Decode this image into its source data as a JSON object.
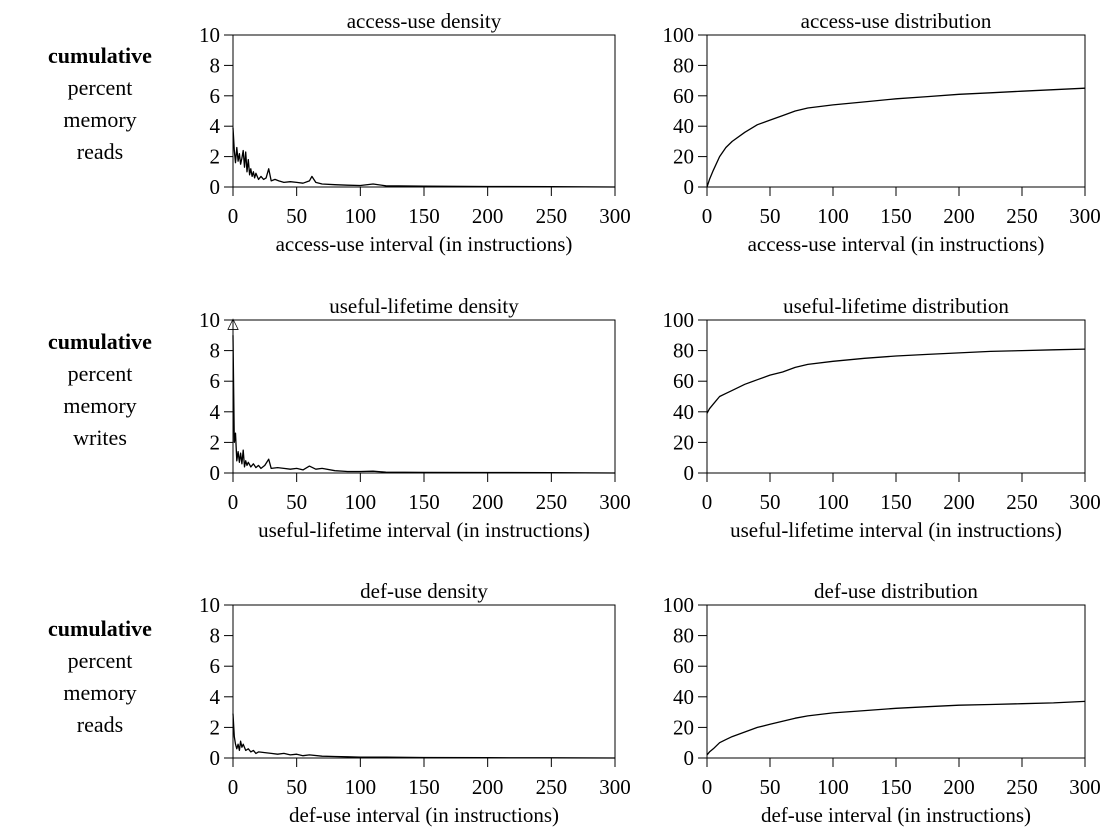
{
  "row_labels": [
    {
      "first": "cumulative",
      "lines": [
        "percent",
        "memory",
        "reads"
      ]
    },
    {
      "first": "cumulative",
      "lines": [
        "percent",
        "memory",
        "writes"
      ]
    },
    {
      "first": "cumulative",
      "lines": [
        "percent",
        "memory",
        "reads"
      ]
    }
  ],
  "chart_data": [
    {
      "type": "line",
      "title": "access-use density",
      "xlabel": "access-use interval (in instructions)",
      "ylabel": "",
      "xlim": [
        0,
        300
      ],
      "ylim": [
        0,
        10
      ],
      "xticks": [
        "0",
        "50",
        "100",
        "150",
        "200",
        "250",
        "300"
      ],
      "yticks": [
        "0",
        "2",
        "4",
        "6",
        "8",
        "10"
      ],
      "x": [
        0,
        1,
        2,
        3,
        4,
        5,
        6,
        7,
        8,
        9,
        10,
        11,
        12,
        13,
        14,
        15,
        16,
        17,
        18,
        20,
        22,
        24,
        26,
        28,
        30,
        33,
        36,
        40,
        45,
        50,
        55,
        60,
        62,
        65,
        70,
        80,
        90,
        100,
        110,
        120,
        150,
        200,
        250,
        300
      ],
      "series": [
        {
          "values": [
            3.9,
            2.4,
            1.6,
            2.6,
            1.7,
            2.2,
            1.5,
            1.9,
            2.4,
            1.3,
            2.3,
            1.0,
            1.8,
            0.8,
            1.2,
            0.7,
            1.0,
            0.6,
            0.9,
            0.5,
            0.7,
            0.5,
            0.6,
            1.2,
            0.4,
            0.5,
            0.4,
            0.3,
            0.35,
            0.3,
            0.25,
            0.4,
            0.7,
            0.3,
            0.2,
            0.15,
            0.12,
            0.1,
            0.2,
            0.08,
            0.05,
            0.03,
            0.02,
            0.0
          ]
        }
      ]
    },
    {
      "type": "line",
      "title": "access-use distribution",
      "xlabel": "access-use interval (in instructions)",
      "ylabel": "",
      "xlim": [
        0,
        300
      ],
      "ylim": [
        0,
        100
      ],
      "xticks": [
        "0",
        "50",
        "100",
        "150",
        "200",
        "250",
        "300"
      ],
      "yticks": [
        "0",
        "20",
        "40",
        "60",
        "80",
        "100"
      ],
      "x": [
        0,
        2,
        5,
        10,
        15,
        20,
        30,
        40,
        50,
        60,
        70,
        80,
        100,
        125,
        150,
        175,
        200,
        225,
        250,
        275,
        300
      ],
      "series": [
        {
          "values": [
            0,
            5,
            11,
            20,
            26,
            30,
            36,
            41,
            44,
            47,
            50,
            52,
            54,
            56,
            58,
            59.5,
            61,
            62,
            63,
            64,
            65
          ]
        }
      ]
    },
    {
      "type": "line",
      "title": "useful-lifetime density",
      "xlabel": "useful-lifetime interval (in instructions)",
      "ylabel": "",
      "xlim": [
        0,
        300
      ],
      "ylim": [
        0,
        10
      ],
      "xticks": [
        "0",
        "50",
        "100",
        "150",
        "200",
        "250",
        "300"
      ],
      "yticks": [
        "0",
        "2",
        "4",
        "6",
        "8",
        "10"
      ],
      "x": [
        0,
        1,
        2,
        3,
        4,
        5,
        6,
        7,
        8,
        9,
        10,
        11,
        12,
        14,
        16,
        18,
        20,
        22,
        25,
        28,
        30,
        35,
        40,
        45,
        50,
        55,
        60,
        65,
        70,
        80,
        90,
        100,
        110,
        120,
        150,
        200,
        250,
        300
      ],
      "series": [
        {
          "values": [
            9.0,
            2.0,
            2.6,
            0.8,
            1.4,
            0.7,
            1.3,
            0.6,
            1.5,
            0.4,
            0.8,
            0.5,
            0.7,
            0.4,
            0.6,
            0.35,
            0.5,
            0.3,
            0.5,
            0.9,
            0.3,
            0.35,
            0.3,
            0.25,
            0.3,
            0.2,
            0.45,
            0.25,
            0.3,
            0.15,
            0.1,
            0.1,
            0.12,
            0.05,
            0.04,
            0.03,
            0.02,
            0.0
          ]
        }
      ],
      "annotations": [
        {
          "text": "△",
          "x": 0,
          "y": 10
        }
      ]
    },
    {
      "type": "line",
      "title": "useful-lifetime distribution",
      "xlabel": "useful-lifetime interval (in instructions)",
      "ylabel": "",
      "xlim": [
        0,
        300
      ],
      "ylim": [
        0,
        100
      ],
      "xticks": [
        "0",
        "50",
        "100",
        "150",
        "200",
        "250",
        "300"
      ],
      "yticks": [
        "0",
        "20",
        "40",
        "60",
        "80",
        "100"
      ],
      "x": [
        0,
        2,
        5,
        10,
        15,
        20,
        30,
        40,
        50,
        60,
        70,
        80,
        100,
        125,
        150,
        175,
        200,
        225,
        250,
        275,
        300
      ],
      "series": [
        {
          "values": [
            39,
            42,
            45,
            50,
            52,
            54,
            58,
            61,
            64,
            66,
            69,
            71,
            73,
            75,
            76.5,
            77.5,
            78.5,
            79.5,
            80,
            80.5,
            81
          ]
        }
      ]
    },
    {
      "type": "line",
      "title": "def-use density",
      "xlabel": "def-use interval (in instructions)",
      "ylabel": "",
      "xlim": [
        0,
        300
      ],
      "ylim": [
        0,
        10
      ],
      "xticks": [
        "0",
        "50",
        "100",
        "150",
        "200",
        "250",
        "300"
      ],
      "yticks": [
        "0",
        "2",
        "4",
        "6",
        "8",
        "10"
      ],
      "x": [
        0,
        1,
        2,
        3,
        4,
        5,
        6,
        7,
        8,
        10,
        12,
        14,
        16,
        18,
        20,
        25,
        30,
        35,
        40,
        45,
        50,
        55,
        60,
        70,
        80,
        90,
        100,
        120,
        150,
        200,
        250,
        300
      ],
      "series": [
        {
          "values": [
            2.9,
            1.4,
            0.9,
            0.6,
            0.9,
            0.5,
            1.1,
            0.7,
            0.9,
            0.5,
            0.6,
            0.4,
            0.5,
            0.3,
            0.4,
            0.35,
            0.3,
            0.25,
            0.3,
            0.2,
            0.25,
            0.15,
            0.2,
            0.12,
            0.1,
            0.08,
            0.06,
            0.05,
            0.03,
            0.02,
            0.01,
            0.0
          ]
        }
      ]
    },
    {
      "type": "line",
      "title": "def-use distribution",
      "xlabel": "def-use interval (in instructions)",
      "ylabel": "",
      "xlim": [
        0,
        300
      ],
      "ylim": [
        0,
        100
      ],
      "xticks": [
        "0",
        "50",
        "100",
        "150",
        "200",
        "250",
        "300"
      ],
      "yticks": [
        "0",
        "20",
        "40",
        "60",
        "80",
        "100"
      ],
      "x": [
        0,
        2,
        5,
        10,
        15,
        20,
        30,
        40,
        50,
        60,
        70,
        80,
        100,
        125,
        150,
        175,
        200,
        225,
        250,
        275,
        300
      ],
      "series": [
        {
          "values": [
            2,
            4,
            6,
            10,
            12,
            14,
            17,
            20,
            22,
            24,
            26,
            27.5,
            29.5,
            31,
            32.5,
            33.5,
            34.5,
            35,
            35.5,
            36,
            37
          ]
        }
      ]
    }
  ]
}
